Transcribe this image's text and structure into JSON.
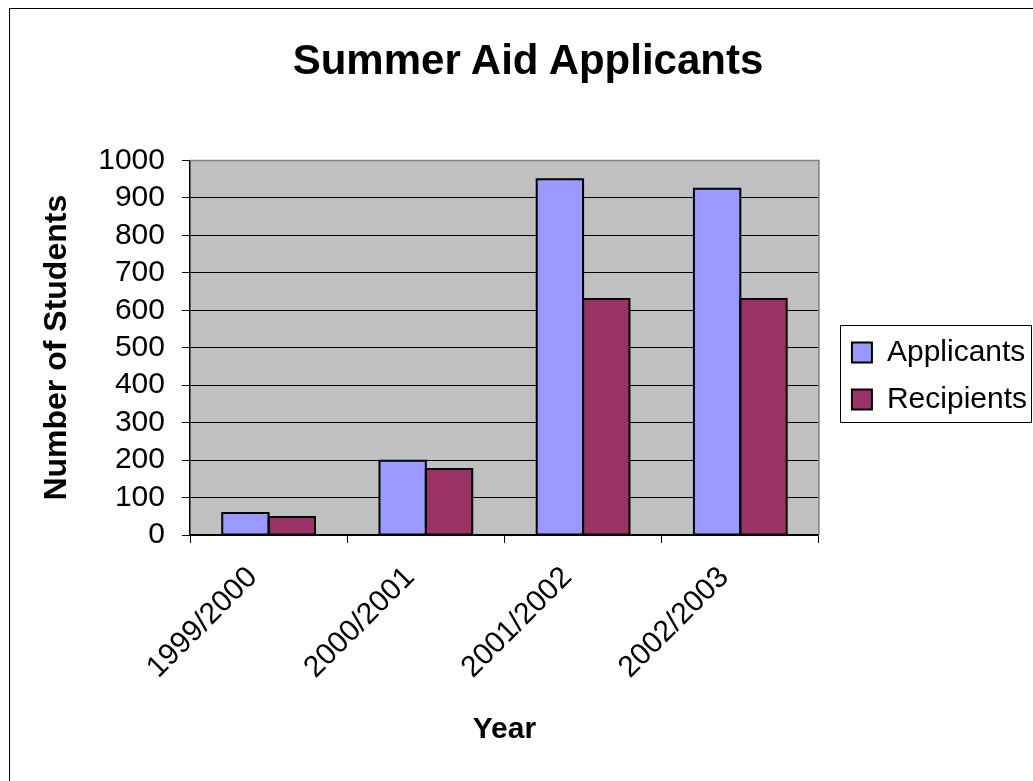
{
  "chart_data": {
    "type": "bar",
    "title": "Summer Aid Applicants",
    "xlabel": "Year",
    "ylabel": "Number of Students",
    "categories": [
      "1999/2000",
      "2000/2001",
      "2001/2002",
      "2002/2003"
    ],
    "series": [
      {
        "name": "Applicants",
        "color": "#9999ff",
        "values": [
          59,
          198,
          950,
          924
        ]
      },
      {
        "name": "Recipients",
        "color": "#993366",
        "values": [
          48,
          176,
          630,
          630
        ]
      }
    ],
    "ylim": [
      0,
      1000
    ],
    "yticks": [
      0,
      100,
      200,
      300,
      400,
      500,
      600,
      700,
      800,
      900,
      1000
    ],
    "grid": "y",
    "legend": "right"
  }
}
